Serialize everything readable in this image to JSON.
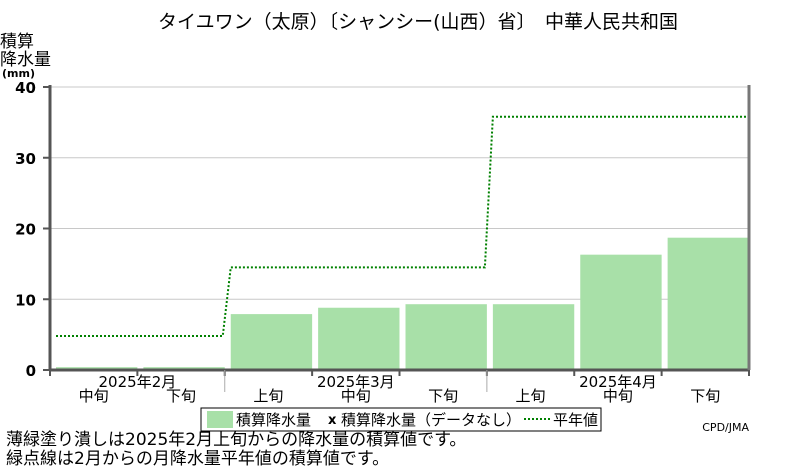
{
  "chart_data": {
    "type": "bar",
    "title": "タイユワン（太原）〔シャンシー(山西）省〕　中華人民共和国",
    "ylabel_lines": [
      "積算",
      "降水量",
      "(mm)"
    ],
    "ylim": [
      0,
      40
    ],
    "yticks": [
      0,
      10,
      20,
      30,
      40
    ],
    "grid": true,
    "categories": [
      "中旬",
      "下旬",
      "上旬",
      "中旬",
      "下旬",
      "上旬",
      "中旬",
      "下旬"
    ],
    "month_labels": [
      "2025年2月",
      "2025年3月",
      "2025年4月"
    ],
    "month_category_spans": [
      [
        0,
        1
      ],
      [
        2,
        4
      ],
      [
        5,
        7
      ]
    ],
    "series": [
      {
        "name": "積算降水量",
        "kind": "bar",
        "color": "#a8e0a8",
        "values": [
          0.4,
          0.4,
          7.9,
          8.8,
          9.3,
          9.3,
          16.3,
          18.7
        ]
      },
      {
        "name": "平年値",
        "kind": "step-dotted",
        "color": "#008000",
        "values": [
          4.8,
          4.8,
          14.5,
          14.5,
          14.5,
          35.8,
          35.8,
          35.8
        ]
      }
    ],
    "legend": {
      "position": "bottom-center",
      "items": [
        "積算降水量",
        "積算降水量（データなし）",
        "平年値"
      ],
      "nodata_marker": "x"
    }
  },
  "source": "CPD/JMA",
  "notes": [
    "薄緑塗り潰しは2025年2月上旬からの降水量の積算値です。",
    "緑点線は2月からの月降水量平年値の積算値です。"
  ]
}
